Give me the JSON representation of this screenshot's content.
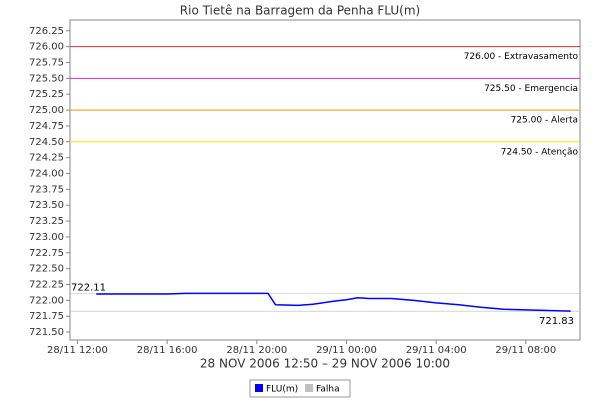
{
  "chart_data": {
    "type": "line",
    "title": "Rio Tietê na Barragem da Penha FLU(m)",
    "xlabel": "28 NOV 2006 12:50 – 29 NOV 2006 10:00",
    "x": [
      "2006-11-28T12:50",
      "2006-11-28T14:00",
      "2006-11-28T16:00",
      "2006-11-28T16:50",
      "2006-11-28T18:00",
      "2006-11-28T20:00",
      "2006-11-28T20:30",
      "2006-11-28T20:50",
      "2006-11-28T21:50",
      "2006-11-28T22:30",
      "2006-11-28T23:30",
      "2006-11-29T00:00",
      "2006-11-29T00:30",
      "2006-11-29T01:00",
      "2006-11-29T02:00",
      "2006-11-29T03:00",
      "2006-11-29T04:00",
      "2006-11-29T05:00",
      "2006-11-29T06:00",
      "2006-11-29T07:00",
      "2006-11-29T08:00",
      "2006-11-29T09:00",
      "2006-11-29T10:00"
    ],
    "series": [
      {
        "name": "FLU(m)",
        "color": "#0000ff",
        "values": [
          722.1,
          722.1,
          722.1,
          722.11,
          722.11,
          722.11,
          722.11,
          721.93,
          721.92,
          721.94,
          721.99,
          722.01,
          722.04,
          722.03,
          722.03,
          722.0,
          721.96,
          721.93,
          721.89,
          721.86,
          721.85,
          721.84,
          721.83
        ]
      },
      {
        "name": "Falha",
        "color": "#c0c0c0",
        "values": [
          null,
          null,
          null,
          null,
          null,
          null,
          null,
          null,
          null,
          null,
          null,
          null,
          null,
          null,
          null,
          null,
          null,
          null,
          null,
          null,
          null,
          null,
          null
        ]
      }
    ],
    "xlim": [
      "2006-11-28T11:40",
      "2006-11-29T10:25"
    ],
    "xticks": [
      {
        "value": "2006-11-28T12:00",
        "label": "28/11 12:00"
      },
      {
        "value": "2006-11-28T16:00",
        "label": "28/11 16:00"
      },
      {
        "value": "2006-11-28T20:00",
        "label": "28/11 20:00"
      },
      {
        "value": "2006-11-29T00:00",
        "label": "29/11 00:00"
      },
      {
        "value": "2006-11-29T04:00",
        "label": "29/11 04:00"
      },
      {
        "value": "2006-11-29T08:00",
        "label": "29/11 08:00"
      }
    ],
    "ylim": [
      721.375,
      726.42
    ],
    "yticks": [
      {
        "value": 721.5,
        "label": "721.50"
      },
      721.75,
      {
        "value": 722,
        "label": "722.00"
      },
      722.25,
      {
        "value": 722.5,
        "label": "722.50"
      },
      722.75,
      {
        "value": 723,
        "label": "723.00"
      },
      723.25,
      {
        "value": 723.5,
        "label": "723.50"
      },
      723.75,
      {
        "value": 724,
        "label": "724.00"
      },
      724.25,
      {
        "value": 724.5,
        "label": "724.50"
      },
      724.75,
      {
        "value": 725,
        "label": "725.00"
      },
      725.25,
      {
        "value": 725.5,
        "label": "725.50"
      },
      725.75,
      {
        "value": 726,
        "label": "726.00"
      },
      726.25
    ],
    "thresholds": [
      {
        "value": 726.0,
        "label": "726.00 - Extravasamento",
        "color": "#cc3333"
      },
      {
        "value": 725.5,
        "label": "725.50 - Emergencia",
        "color": "#cc33cc"
      },
      {
        "value": 725.0,
        "label": "725.00 - Alerta",
        "color": "#ee9900"
      },
      {
        "value": 724.5,
        "label": "724.50 - Atenção",
        "color": "#eeee00"
      }
    ],
    "annotations": [
      722.11,
      721.83
    ]
  }
}
